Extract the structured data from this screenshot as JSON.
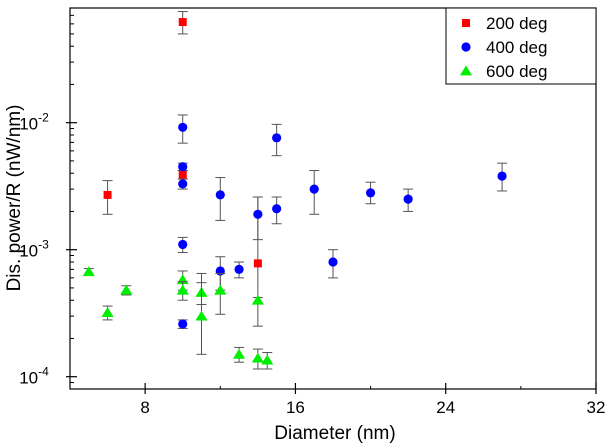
{
  "chart_data": {
    "type": "scatter",
    "title": "",
    "xlabel": "Diameter (nm)",
    "ylabel": "Dis. power/R (nW/nm)",
    "xlim": [
      4,
      32
    ],
    "ylim": [
      8e-05,
      0.08
    ],
    "yscale": "log",
    "grid": false,
    "legend_position": "top-right",
    "x_ticks": [
      {
        "value": 8,
        "label": "8"
      },
      {
        "value": 16,
        "label": "16"
      },
      {
        "value": 24,
        "label": "24"
      },
      {
        "value": 32,
        "label": "32"
      }
    ],
    "y_ticks": [
      {
        "value": 0.0001,
        "base": "10",
        "exp": "-4"
      },
      {
        "value": 0.001,
        "base": "10",
        "exp": "-3"
      },
      {
        "value": 0.01,
        "base": "10",
        "exp": "-2"
      }
    ],
    "series": [
      {
        "name": "200 deg",
        "marker": "square",
        "color": "#ff0000",
        "points": [
          {
            "x": 6,
            "y": 0.0027,
            "lo": 0.0019,
            "hi": 0.0035
          },
          {
            "x": 10,
            "y": 0.062,
            "lo": 0.05,
            "hi": 0.075
          },
          {
            "x": 10,
            "y": 0.0039,
            "lo": 0.0036,
            "hi": 0.0042
          },
          {
            "x": 14,
            "y": 0.00078,
            "lo": 0.00025,
            "hi": 0.0026
          }
        ]
      },
      {
        "name": "400 deg",
        "marker": "circle",
        "color": "#0000ff",
        "points": [
          {
            "x": 10,
            "y": 0.0092,
            "lo": 0.0069,
            "hi": 0.0115
          },
          {
            "x": 10,
            "y": 0.0045,
            "lo": 0.0042,
            "hi": 0.0048
          },
          {
            "x": 10,
            "y": 0.0033,
            "lo": 0.003,
            "hi": 0.0036
          },
          {
            "x": 10,
            "y": 0.0011,
            "lo": 0.00095,
            "hi": 0.00125
          },
          {
            "x": 10,
            "y": 0.00026,
            "lo": 0.00024,
            "hi": 0.00028
          },
          {
            "x": 12,
            "y": 0.0027,
            "lo": 0.0017,
            "hi": 0.0037
          },
          {
            "x": 12,
            "y": 0.00068,
            "lo": 0.00048,
            "hi": 0.00088
          },
          {
            "x": 13,
            "y": 0.0007,
            "lo": 0.0006,
            "hi": 0.0008
          },
          {
            "x": 14,
            "y": 0.0019,
            "lo": 0.0012,
            "hi": 0.0026
          },
          {
            "x": 15,
            "y": 0.0076,
            "lo": 0.0055,
            "hi": 0.0097
          },
          {
            "x": 15,
            "y": 0.0021,
            "lo": 0.0016,
            "hi": 0.0026
          },
          {
            "x": 17,
            "y": 0.003,
            "lo": 0.0019,
            "hi": 0.0042
          },
          {
            "x": 18,
            "y": 0.0008,
            "lo": 0.0006,
            "hi": 0.001
          },
          {
            "x": 20,
            "y": 0.0028,
            "lo": 0.0023,
            "hi": 0.0034
          },
          {
            "x": 22,
            "y": 0.0025,
            "lo": 0.002,
            "hi": 0.003
          },
          {
            "x": 27,
            "y": 0.0038,
            "lo": 0.0029,
            "hi": 0.0048
          }
        ]
      },
      {
        "name": "600 deg",
        "marker": "triangle",
        "color": "#00ee00",
        "points": [
          {
            "x": 5,
            "y": 0.00067,
            "lo": 0.00063,
            "hi": 0.00071
          },
          {
            "x": 6,
            "y": 0.00032,
            "lo": 0.00028,
            "hi": 0.00036
          },
          {
            "x": 7,
            "y": 0.00048,
            "lo": 0.00044,
            "hi": 0.00052
          },
          {
            "x": 10,
            "y": 0.00058,
            "lo": 0.00048,
            "hi": 0.00068
          },
          {
            "x": 10,
            "y": 0.00048,
            "lo": 0.0004,
            "hi": 0.00056
          },
          {
            "x": 11,
            "y": 0.00046,
            "lo": 0.00037,
            "hi": 0.00055
          },
          {
            "x": 11,
            "y": 0.0003,
            "lo": 0.00015,
            "hi": 0.00065
          },
          {
            "x": 12,
            "y": 0.00048,
            "lo": 0.00031,
            "hi": 0.00065
          },
          {
            "x": 13,
            "y": 0.00015,
            "lo": 0.00013,
            "hi": 0.00017
          },
          {
            "x": 14,
            "y": 0.0004,
            "lo": 0.00038,
            "hi": 0.00042
          },
          {
            "x": 14,
            "y": 0.00014,
            "lo": 0.000115,
            "hi": 0.000165
          },
          {
            "x": 14.5,
            "y": 0.000135,
            "lo": 0.000115,
            "hi": 0.000155
          }
        ]
      }
    ]
  }
}
